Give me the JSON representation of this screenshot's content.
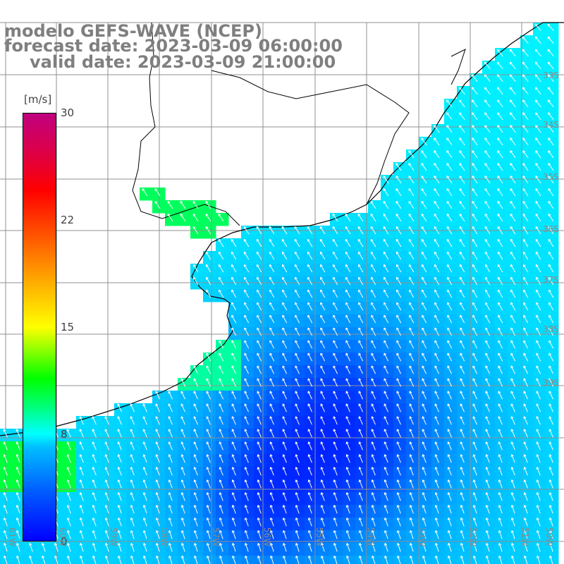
{
  "title": {
    "line1": "modelo GEFS-WAVE (NCEP)",
    "line2": "forecast date: 2023-03-09 06:00:00",
    "line3": "valid date: 2023-03-09 21:00:00"
  },
  "colorbar": {
    "unit": "[m/s]",
    "ticks": [
      {
        "label": "30",
        "value": 30
      },
      {
        "label": "22",
        "value": 22
      },
      {
        "label": "15",
        "value": 15
      },
      {
        "label": "8",
        "value": 8
      },
      {
        "label": "0",
        "value": 0
      }
    ]
  },
  "axes": {
    "lon_labels": [
      "61W",
      "60W",
      "59W",
      "58W",
      "57W",
      "56W",
      "55W",
      "54W",
      "53W",
      "52W",
      "51W",
      "50W"
    ],
    "lat_labels": [
      "33S",
      "34S",
      "35S",
      "36S",
      "37S",
      "38S",
      "39S"
    ]
  },
  "colors": {
    "land": "#ffffff",
    "grid": "#909090",
    "coast": "#000000",
    "arrows": "#ffffff",
    "title": "#7f7f7f"
  }
}
